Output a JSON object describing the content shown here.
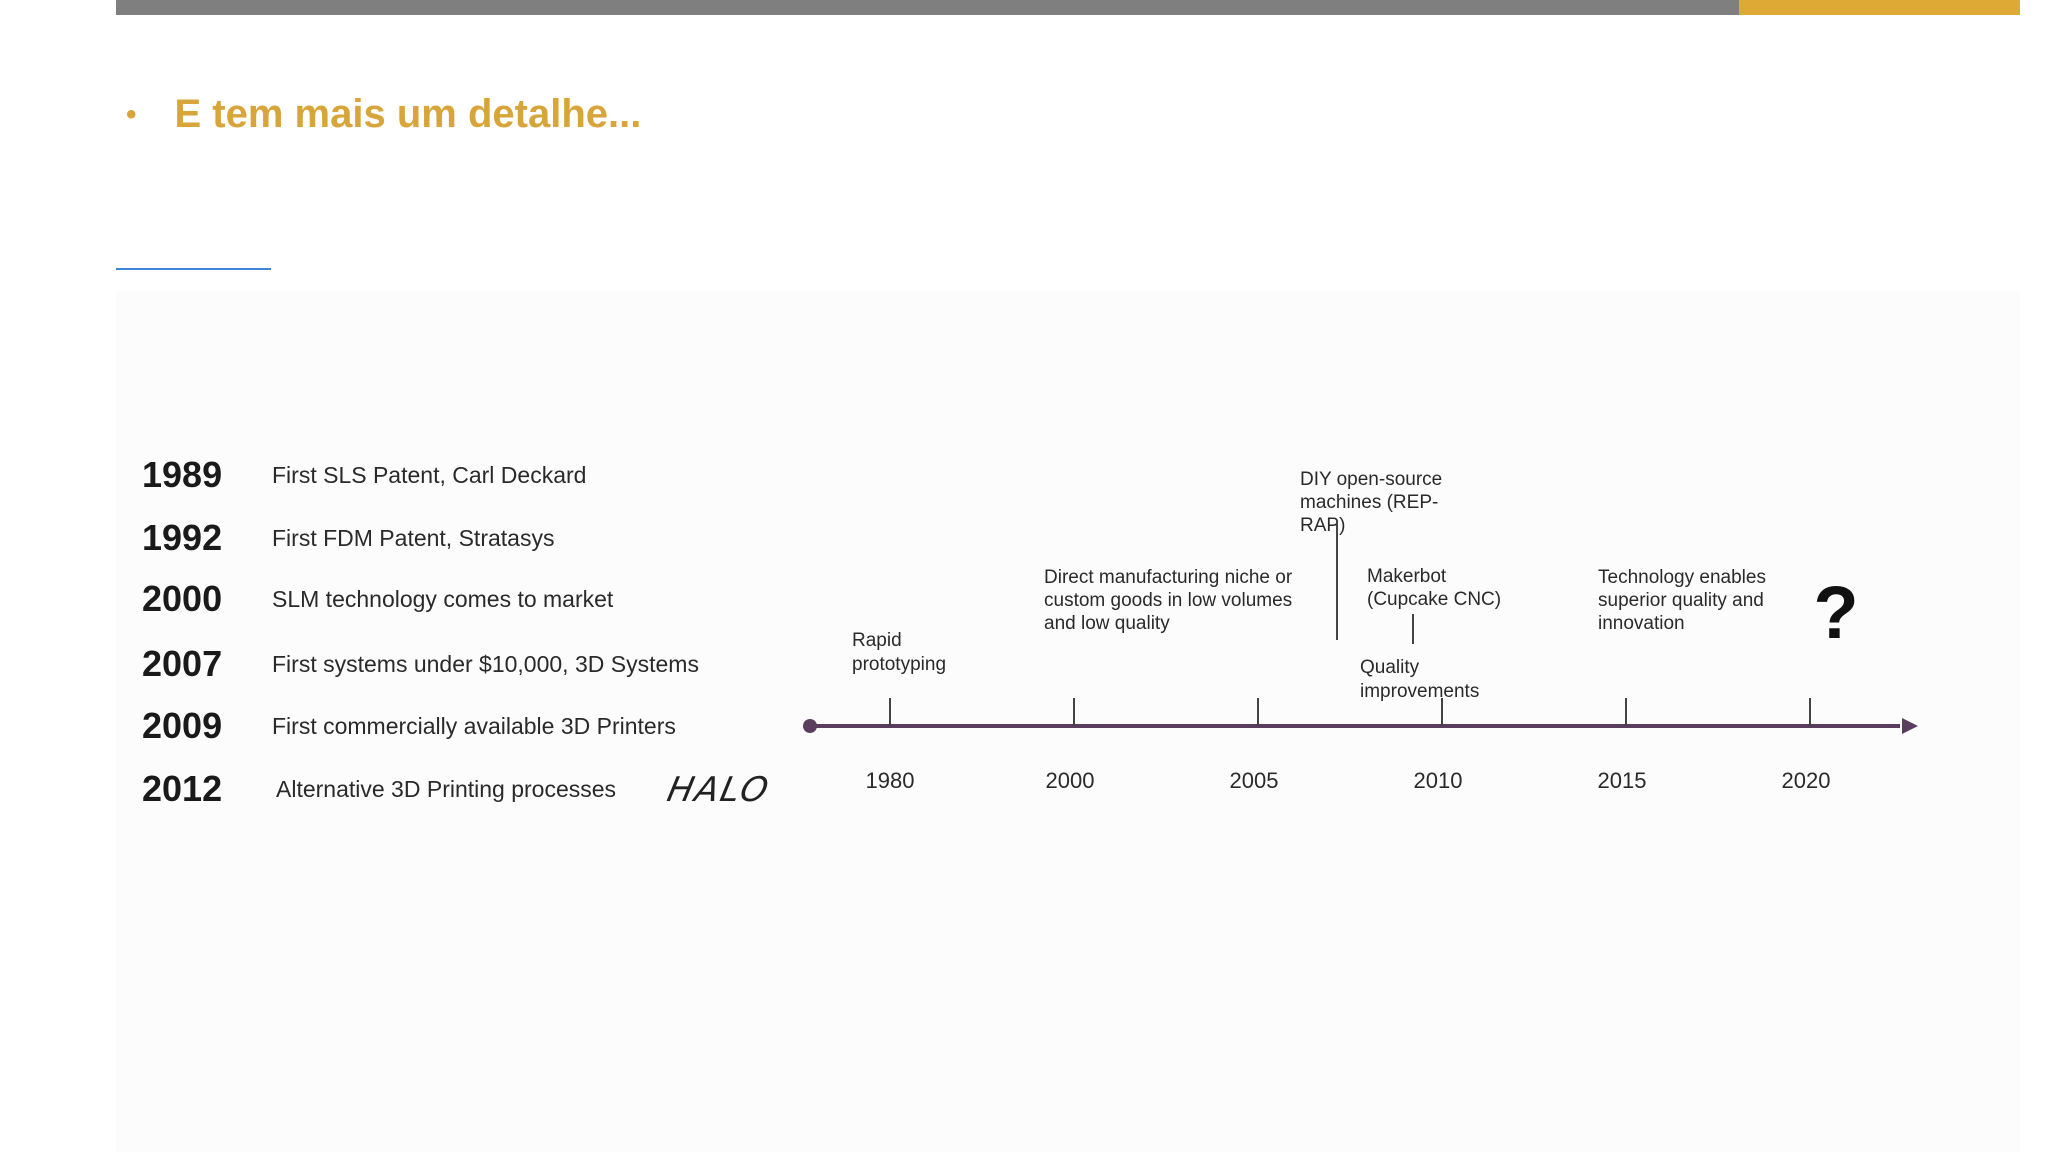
{
  "slide": {
    "bullet": "•",
    "title": "E tem mais um detalhe..."
  },
  "milestones": [
    {
      "year": "1989",
      "text": "First SLS Patent, Carl Deckard"
    },
    {
      "year": "1992",
      "text": "First FDM Patent, Stratasys"
    },
    {
      "year": "2000",
      "text": "SLM technology comes to market"
    },
    {
      "year": "2007",
      "text": "First systems under $10,000, 3D Systems"
    },
    {
      "year": "2009",
      "text": "First commercially available 3D Printers"
    },
    {
      "year": "2012",
      "text": "Alternative 3D Printing processes"
    }
  ],
  "logo_text": "HALO",
  "timeline": {
    "ticks": [
      "1980",
      "2000",
      "2005",
      "2010",
      "2015",
      "2020"
    ],
    "annotations": {
      "rapid": [
        "Rapid",
        "prototyping"
      ],
      "direct": [
        "Direct manufacturing niche or",
        "custom goods in low volumes",
        "and low quality"
      ],
      "diy": [
        "DIY open-source",
        "machines (REP-",
        "RAP)"
      ],
      "makerbot": [
        "Makerbot",
        "(Cupcake CNC)"
      ],
      "quality": [
        "Quality",
        "improvements"
      ],
      "technology": [
        "Technology enables",
        "superior quality and",
        "innovation"
      ],
      "future": "?"
    },
    "colors": {
      "axis": "#5b3d5f",
      "tick": "#444444"
    }
  }
}
